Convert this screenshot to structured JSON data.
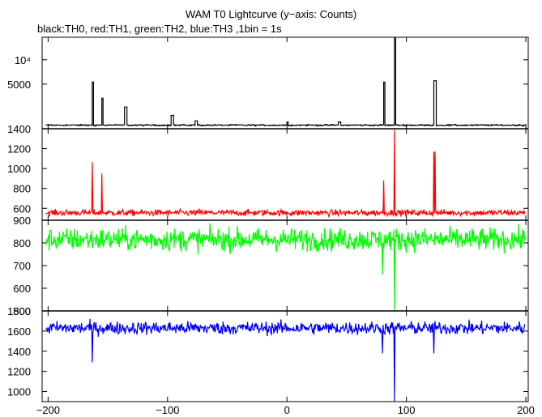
{
  "title": "WAM T0 Lightcurve (y−axis: Counts)",
  "subtitle": "black:TH0, red:TH1, green:TH2, blue:TH3 ,1bin = 1s",
  "chart_data": {
    "type": "line",
    "x": {
      "range": [
        -205,
        202
      ],
      "ticks": [
        -200,
        -100,
        0,
        100,
        200
      ],
      "tick_labels": [
        "−200",
        "−100",
        "0",
        "100",
        "200"
      ]
    },
    "panels": [
      {
        "name": "TH0",
        "color": "#000000",
        "scale": "log",
        "ylim": [
          1400,
          19000
        ],
        "ticks": [
          1400,
          5000,
          10000
        ],
        "tick_labels": [
          "1400",
          "5000",
          "10⁴"
        ],
        "baseline": 1550,
        "noise": 40,
        "spikes": [
          {
            "x": -163,
            "value": 5300,
            "width": 1
          },
          {
            "x": -155,
            "value": 3350,
            "width": 1
          },
          {
            "x": -136,
            "value": 2600,
            "width": 2
          },
          {
            "x": -97,
            "value": 2050,
            "width": 2
          },
          {
            "x": -77,
            "value": 1750,
            "width": 2
          },
          {
            "x": 0,
            "value": 1700,
            "width": 1
          },
          {
            "x": 43,
            "value": 1700,
            "width": 2
          },
          {
            "x": 81,
            "value": 5300,
            "width": 1
          },
          {
            "x": 90,
            "value": 18500,
            "width": 1
          },
          {
            "x": 123,
            "value": 5500,
            "width": 2
          }
        ]
      },
      {
        "name": "TH1",
        "color": "#ff0000",
        "scale": "linear",
        "ylim": [
          480,
          1400
        ],
        "ticks": [
          600,
          800,
          1000,
          1200
        ],
        "tick_labels": [
          "600",
          "800",
          "1000",
          "1200"
        ],
        "baseline": 555,
        "noise": 22,
        "spikes": [
          {
            "x": -163,
            "value": 1065,
            "width": 1
          },
          {
            "x": -155,
            "value": 950,
            "width": 1
          },
          {
            "x": 81,
            "value": 880,
            "width": 1
          },
          {
            "x": 90,
            "value": 1390,
            "width": 1
          },
          {
            "x": 123,
            "value": 1170,
            "width": 2
          }
        ]
      },
      {
        "name": "TH2",
        "color": "#00ff00",
        "scale": "linear",
        "ylim": [
          500,
          900
        ],
        "ticks": [
          500,
          600,
          700,
          800,
          900
        ],
        "tick_labels": [
          "500",
          "600",
          "700",
          "800",
          "900"
        ],
        "baseline": 815,
        "noise": 35,
        "spikes": [
          {
            "x": 80,
            "value": 660,
            "width": 1
          },
          {
            "x": 90,
            "value": 500,
            "width": 1
          }
        ]
      },
      {
        "name": "TH3",
        "color": "#0000ff",
        "scale": "linear",
        "ylim": [
          900,
          1800
        ],
        "ticks": [
          1000,
          1200,
          1400,
          1600,
          1800
        ],
        "tick_labels": [
          "1000",
          "1200",
          "1400",
          "1600",
          "1800"
        ],
        "baseline": 1630,
        "noise": 45,
        "spikes": [
          {
            "x": -163,
            "value": 1290,
            "width": 1
          },
          {
            "x": 80,
            "value": 1380,
            "width": 1
          },
          {
            "x": 90,
            "value": 890,
            "width": 1
          },
          {
            "x": 123,
            "value": 1380,
            "width": 1
          }
        ]
      }
    ]
  }
}
